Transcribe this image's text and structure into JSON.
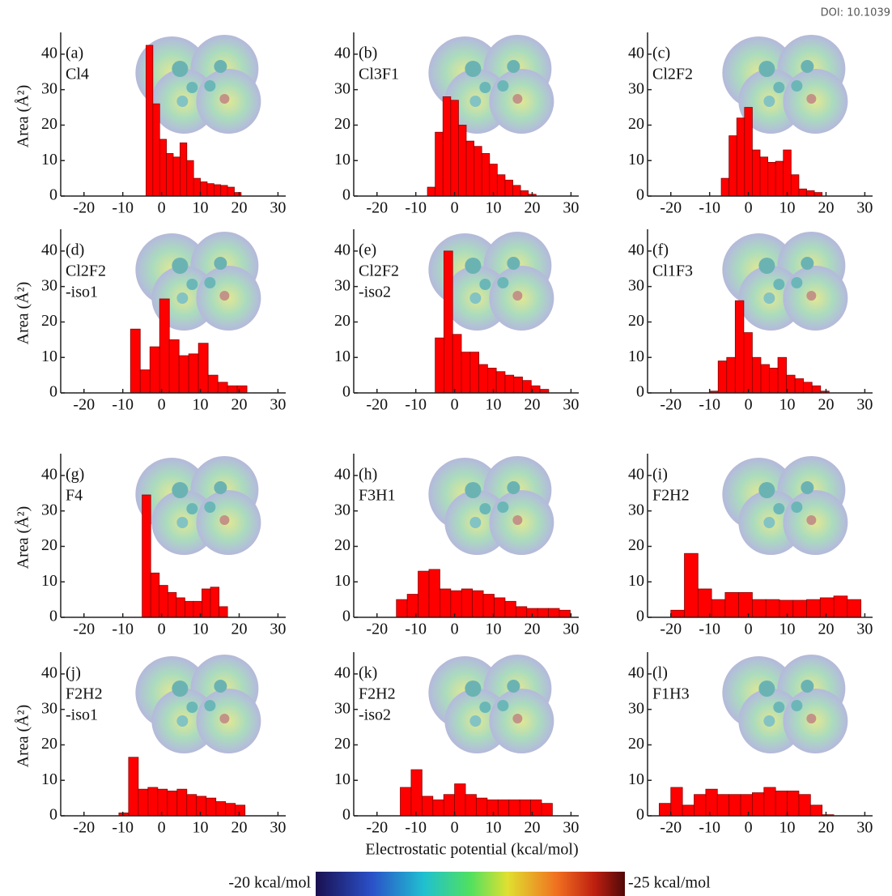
{
  "figure": {
    "xlabel": "Electrostatic potential (kcal/mol)",
    "colorbar_min_label": "-20 kcal/mol",
    "colorbar_max_label": "-25 kcal/mol",
    "doi": "DOI: 10.1039"
  },
  "chart_data": [
    {
      "type": "histogram",
      "panel": "(a)",
      "name_lines": [
        "Cl4"
      ],
      "ylabel": "Area (Å²)",
      "color": "#ff0000",
      "xlim": [
        -26,
        32
      ],
      "ylim": [
        0,
        45
      ],
      "xticks": [
        -20,
        -10,
        0,
        10,
        20,
        30
      ],
      "yticks": [
        0,
        10,
        20,
        30,
        40
      ],
      "bins": [
        -4,
        -2.25,
        -0.5,
        1.25,
        3,
        4.75,
        6.5,
        8.25,
        10,
        11.75,
        13.5,
        15.25,
        17,
        18.75,
        20.5
      ],
      "values": [
        42.5,
        26,
        16,
        12,
        11,
        15,
        10,
        5,
        4,
        3.5,
        3.2,
        3,
        2.5,
        1
      ]
    },
    {
      "type": "histogram",
      "panel": "(b)",
      "name_lines": [
        "Cl3F1"
      ],
      "color": "#ff0000",
      "xlim": [
        -26,
        32
      ],
      "ylim": [
        0,
        45
      ],
      "xticks": [
        -20,
        -10,
        0,
        10,
        20,
        30
      ],
      "yticks": [
        0,
        10,
        20,
        30,
        40
      ],
      "bins": [
        -7,
        -5,
        -3,
        -1,
        1,
        3,
        5,
        7,
        9,
        11,
        13,
        15,
        17,
        19,
        21
      ],
      "values": [
        2.5,
        18,
        28,
        27,
        20,
        15.5,
        14,
        12,
        9,
        6,
        4.5,
        3,
        1.5,
        0.5
      ]
    },
    {
      "type": "histogram",
      "panel": "(c)",
      "name_lines": [
        "Cl2F2"
      ],
      "color": "#ff0000",
      "xlim": [
        -26,
        32
      ],
      "ylim": [
        0,
        45
      ],
      "xticks": [
        -20,
        -10,
        0,
        10,
        20,
        30
      ],
      "yticks": [
        0,
        10,
        20,
        30,
        40
      ],
      "bins": [
        -7,
        -5,
        -3,
        -1,
        1,
        3,
        5,
        7,
        9,
        11,
        13,
        15,
        17,
        19
      ],
      "values": [
        5,
        17,
        22,
        25,
        13,
        11,
        9.5,
        9.8,
        13,
        6,
        2,
        1.5,
        1
      ]
    },
    {
      "type": "histogram",
      "panel": "(d)",
      "name_lines": [
        "Cl2F2",
        "-iso1"
      ],
      "ylabel": "Area (Å²)",
      "color": "#ff0000",
      "xlim": [
        -26,
        32
      ],
      "ylim": [
        0,
        45
      ],
      "xticks": [
        -20,
        -10,
        0,
        10,
        20,
        30
      ],
      "yticks": [
        0,
        10,
        20,
        30,
        40
      ],
      "bins": [
        -8,
        -5.5,
        -3,
        -0.5,
        2,
        4.5,
        7,
        9.5,
        12,
        14.5,
        17,
        19.5,
        22
      ],
      "values": [
        18,
        6.5,
        13,
        26.5,
        15,
        10.5,
        11,
        14,
        5,
        3,
        2,
        2
      ]
    },
    {
      "type": "histogram",
      "panel": "(e)",
      "name_lines": [
        "Cl2F2",
        "-iso2"
      ],
      "color": "#ff0000",
      "xlim": [
        -26,
        32
      ],
      "ylim": [
        0,
        45
      ],
      "xticks": [
        -20,
        -10,
        0,
        10,
        20,
        30
      ],
      "yticks": [
        0,
        10,
        20,
        30,
        40
      ],
      "bins": [
        -5,
        -2.75,
        -0.5,
        1.75,
        4,
        6.25,
        8.5,
        10.75,
        13,
        15.25,
        17.5,
        19.75,
        22,
        24.25
      ],
      "values": [
        15.5,
        40,
        16.5,
        11.5,
        11.5,
        8,
        7,
        6,
        5,
        4.5,
        3.5,
        2,
        1
      ]
    },
    {
      "type": "histogram",
      "panel": "(f)",
      "name_lines": [
        "Cl1F3"
      ],
      "color": "#ff0000",
      "xlim": [
        -26,
        32
      ],
      "ylim": [
        0,
        45
      ],
      "xticks": [
        -20,
        -10,
        0,
        10,
        20,
        30
      ],
      "yticks": [
        0,
        10,
        20,
        30,
        40
      ],
      "bins": [
        -10,
        -7.8,
        -5.6,
        -3.4,
        -1.2,
        1,
        3.2,
        5.4,
        7.6,
        9.8,
        12,
        14.2,
        16.4,
        18.6,
        20.8
      ],
      "values": [
        0.5,
        9,
        10,
        26,
        17,
        10,
        8,
        7,
        10,
        5,
        4,
        3,
        2,
        0.5
      ]
    },
    {
      "type": "histogram",
      "panel": "(g)",
      "name_lines": [
        "F4"
      ],
      "ylabel": "Area (Å²)",
      "color": "#ff0000",
      "xlim": [
        -26,
        32
      ],
      "ylim": [
        0,
        45
      ],
      "xticks": [
        -20,
        -10,
        0,
        10,
        20,
        30
      ],
      "yticks": [
        0,
        10,
        20,
        30,
        40
      ],
      "bins": [
        -5,
        -2.8,
        -0.6,
        1.6,
        3.8,
        6,
        8.2,
        10.4,
        12.6,
        14.8,
        17
      ],
      "values": [
        34.5,
        12.5,
        9,
        7,
        5.5,
        4.5,
        4.5,
        8,
        8.5,
        3
      ]
    },
    {
      "type": "histogram",
      "panel": "(h)",
      "name_lines": [
        "F3H1"
      ],
      "color": "#ff0000",
      "xlim": [
        -26,
        32
      ],
      "ylim": [
        0,
        45
      ],
      "xticks": [
        -20,
        -10,
        0,
        10,
        20,
        30
      ],
      "yticks": [
        0,
        10,
        20,
        30,
        40
      ],
      "bins": [
        -15,
        -12.2,
        -9.4,
        -6.6,
        -3.8,
        -1,
        1.8,
        4.6,
        7.4,
        10.2,
        13,
        15.8,
        18.6,
        21.4,
        24.2,
        27,
        29.8
      ],
      "values": [
        5,
        6.5,
        13,
        13.5,
        8,
        7.5,
        8,
        7.5,
        6.5,
        5.5,
        4.5,
        3,
        2.5,
        2.5,
        2.5,
        2
      ]
    },
    {
      "type": "histogram",
      "panel": "(i)",
      "name_lines": [
        "F2H2"
      ],
      "color": "#ff0000",
      "xlim": [
        -26,
        32
      ],
      "ylim": [
        0,
        45
      ],
      "xticks": [
        -20,
        -10,
        0,
        10,
        20,
        30
      ],
      "yticks": [
        0,
        10,
        20,
        30,
        40
      ],
      "bins": [
        -20,
        -16.5,
        -13,
        -9.5,
        -6,
        -2.5,
        1,
        4.5,
        8,
        11.5,
        15,
        18.5,
        22,
        25.5,
        29
      ],
      "values": [
        2,
        18,
        8,
        5,
        7,
        7,
        5,
        5,
        4.8,
        4.8,
        5,
        5.5,
        6,
        5
      ]
    },
    {
      "type": "histogram",
      "panel": "(j)",
      "name_lines": [
        "F2H2",
        "-iso1"
      ],
      "ylabel": "Area (Å²)",
      "color": "#ff0000",
      "xlim": [
        -26,
        32
      ],
      "ylim": [
        0,
        45
      ],
      "xticks": [
        -20,
        -10,
        0,
        10,
        20,
        30
      ],
      "yticks": [
        0,
        10,
        20,
        30,
        40
      ],
      "bins": [
        -11,
        -8.5,
        -6,
        -3.5,
        -1,
        1.5,
        4,
        6.5,
        9,
        11.5,
        14,
        16.5,
        19,
        21.5
      ],
      "values": [
        0.8,
        16.5,
        7.5,
        8,
        7.5,
        7,
        7.5,
        6,
        5.5,
        5,
        4,
        3.5,
        3
      ]
    },
    {
      "type": "histogram",
      "panel": "(k)",
      "name_lines": [
        "F2H2",
        "-iso2"
      ],
      "color": "#ff0000",
      "xlim": [
        -26,
        32
      ],
      "ylim": [
        0,
        45
      ],
      "xticks": [
        -20,
        -10,
        0,
        10,
        20,
        30
      ],
      "yticks": [
        0,
        10,
        20,
        30,
        40
      ],
      "bins": [
        -14,
        -11.2,
        -8.4,
        -5.6,
        -2.8,
        0,
        2.8,
        5.6,
        8.4,
        11.2,
        14,
        16.8,
        19.6,
        22.4,
        25.2
      ],
      "values": [
        8,
        13,
        5.5,
        4.5,
        6,
        9,
        6,
        5,
        4.5,
        4.5,
        4.5,
        4.5,
        4.5,
        3.5
      ]
    },
    {
      "type": "histogram",
      "panel": "(l)",
      "name_lines": [
        "F1H3"
      ],
      "color": "#ff0000",
      "xlim": [
        -26,
        32
      ],
      "ylim": [
        0,
        45
      ],
      "xticks": [
        -20,
        -10,
        0,
        10,
        20,
        30
      ],
      "yticks": [
        0,
        10,
        20,
        30,
        40
      ],
      "bins": [
        -23,
        -20,
        -17,
        -14,
        -11,
        -8,
        -5,
        -2,
        1,
        4,
        7,
        10,
        13,
        16,
        19,
        22
      ],
      "values": [
        3.5,
        8,
        3,
        6,
        7.5,
        6,
        6,
        6,
        6.5,
        8,
        7,
        7,
        6,
        3,
        0.3
      ]
    }
  ]
}
